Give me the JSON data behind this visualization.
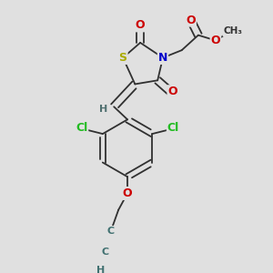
{
  "bg_color": "#e0e0e0",
  "atom_colors": {
    "C": "#303030",
    "H": "#507070",
    "N": "#0000cc",
    "O": "#cc0000",
    "S": "#aaaa00",
    "Cl": "#22bb22"
  },
  "line_color": "#303030",
  "lw": 1.3
}
